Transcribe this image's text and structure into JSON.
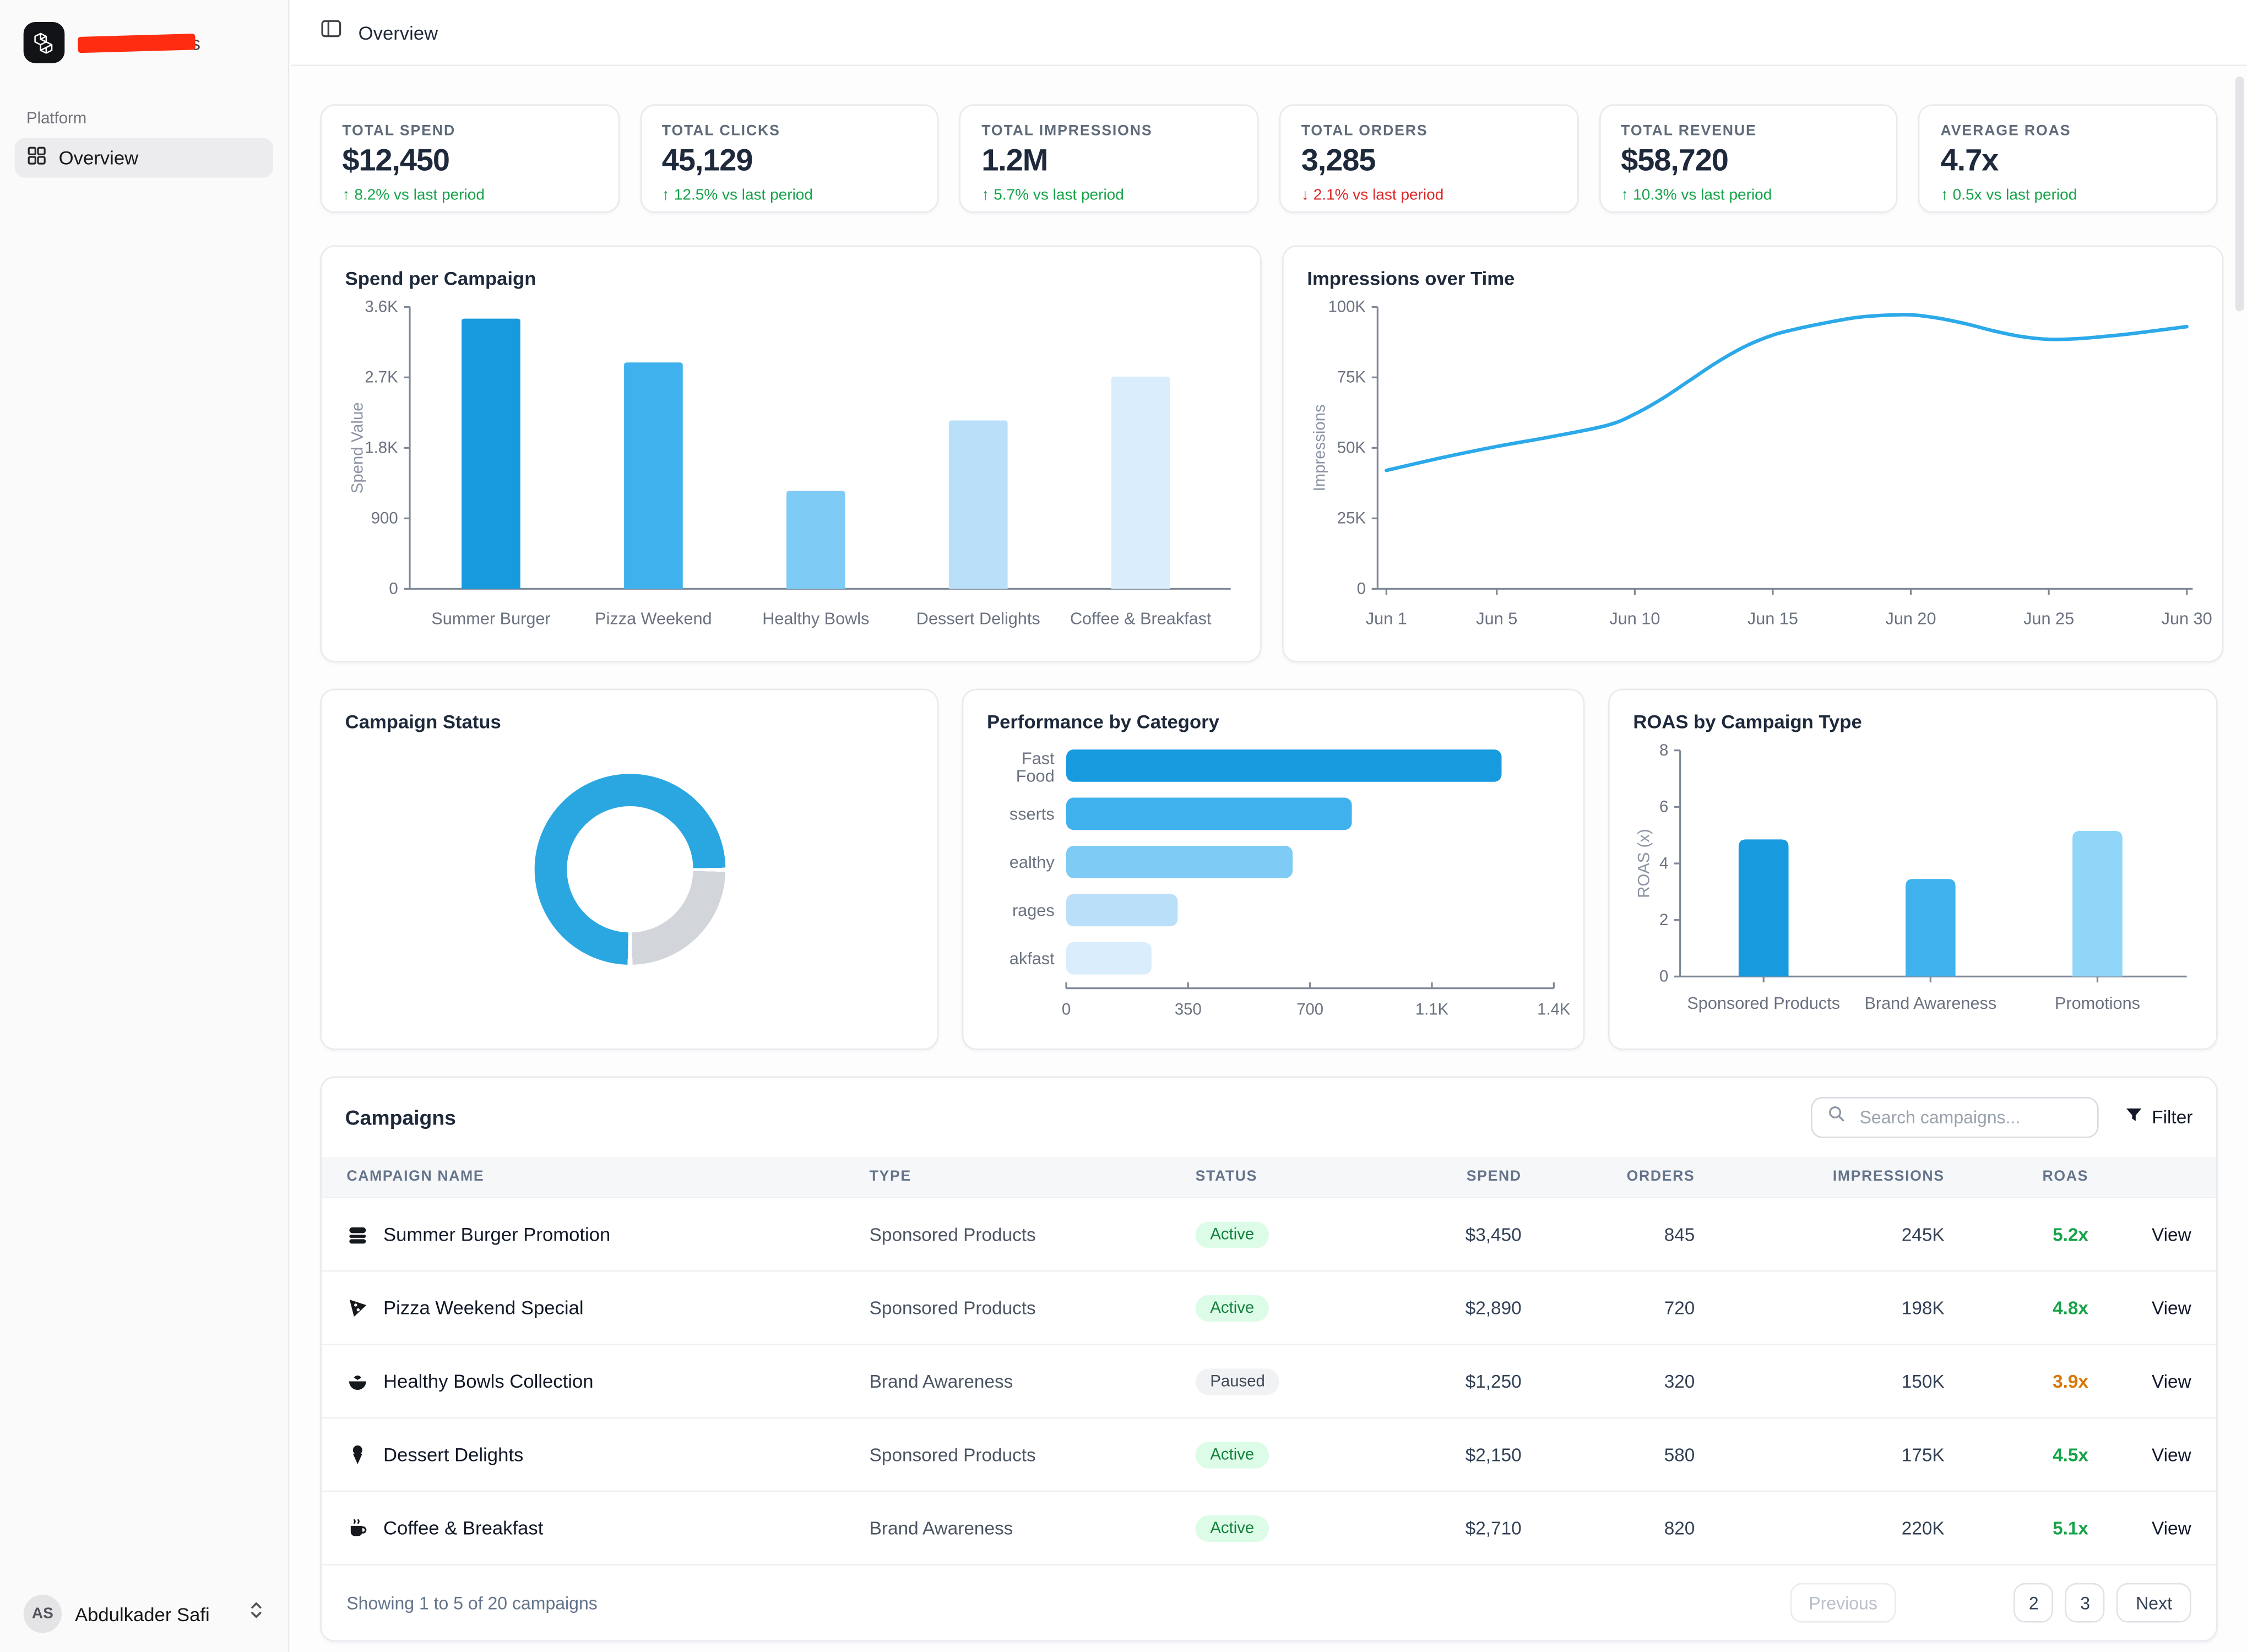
{
  "sidebar": {
    "brand_tail": "s",
    "platform_label": "Platform",
    "nav_overview": "Overview",
    "user_initials": "AS",
    "user_name": "Abdulkader Safi"
  },
  "topbar": {
    "title": "Overview"
  },
  "kpis": [
    {
      "label": "TOTAL SPEND",
      "value": "$12,450",
      "delta": "8.2% vs last period",
      "direction": "up"
    },
    {
      "label": "TOTAL CLICKS",
      "value": "45,129",
      "delta": "12.5% vs last period",
      "direction": "up"
    },
    {
      "label": "TOTAL IMPRESSIONS",
      "value": "1.2M",
      "delta": "5.7% vs last period",
      "direction": "up"
    },
    {
      "label": "TOTAL ORDERS",
      "value": "3,285",
      "delta": "2.1% vs last period",
      "direction": "down"
    },
    {
      "label": "TOTAL REVENUE",
      "value": "$58,720",
      "delta": "10.3% vs last period",
      "direction": "up"
    },
    {
      "label": "AVERAGE ROAS",
      "value": "4.7x",
      "delta": "0.5x vs last period",
      "direction": "up"
    }
  ],
  "chart_data": [
    {
      "id": "spend_per_campaign",
      "type": "bar",
      "title": "Spend per Campaign",
      "ylabel": "Spend Value",
      "categories": [
        "Summer Burger",
        "Pizza Weekend",
        "Healthy Bowls",
        "Dessert Delights",
        "Coffee & Breakfast"
      ],
      "values": [
        3450,
        2890,
        1250,
        2150,
        2710
      ],
      "ylim": [
        0,
        3600
      ],
      "yticks": [
        {
          "v": 0,
          "label": "0"
        },
        {
          "v": 900,
          "label": "900"
        },
        {
          "v": 1800,
          "label": "1.8K"
        },
        {
          "v": 2700,
          "label": "2.7K"
        },
        {
          "v": 3600,
          "label": "3.6K"
        }
      ],
      "colors": [
        "#189BDE",
        "#3FB2EE",
        "#7ECBF5",
        "#BADFF8",
        "#D9EDFC"
      ]
    },
    {
      "id": "impressions_over_time",
      "type": "line",
      "title": "Impressions over Time",
      "ylabel": "Impressions",
      "x": [
        1,
        3,
        5,
        7,
        9,
        10,
        11,
        12,
        13,
        14,
        15,
        16,
        17,
        18,
        19,
        20,
        21,
        22,
        23,
        24,
        25,
        26,
        27,
        28,
        30
      ],
      "y": [
        42000,
        46500,
        50500,
        54000,
        58000,
        62000,
        67500,
        74000,
        80500,
        86000,
        90000,
        92500,
        94500,
        96200,
        97000,
        97200,
        96000,
        94000,
        91500,
        89500,
        88500,
        88700,
        89500,
        90500,
        93000
      ],
      "ylim": [
        0,
        100000
      ],
      "yticks": [
        {
          "v": 0,
          "label": "0"
        },
        {
          "v": 25000,
          "label": "25K"
        },
        {
          "v": 50000,
          "label": "50K"
        },
        {
          "v": 75000,
          "label": "75K"
        },
        {
          "v": 100000,
          "label": "100K"
        }
      ],
      "xticks": [
        {
          "v": 1,
          "label": "Jun 1"
        },
        {
          "v": 5,
          "label": "Jun 5"
        },
        {
          "v": 10,
          "label": "Jun 10"
        },
        {
          "v": 15,
          "label": "Jun 15"
        },
        {
          "v": 20,
          "label": "Jun 20"
        },
        {
          "v": 25,
          "label": "Jun 25"
        },
        {
          "v": 30,
          "label": "Jun 30"
        }
      ],
      "color": "#2BA9E9",
      "grid": false,
      "legend": "none"
    },
    {
      "id": "campaign_status",
      "type": "pie",
      "title": "Campaign Status",
      "slices": [
        {
          "pct": 75,
          "color": "#2AA7E1"
        },
        {
          "pct": 25,
          "color": "#D2D6DB"
        }
      ]
    },
    {
      "id": "performance_by_category",
      "type": "bar",
      "title": "Performance by Category",
      "categories": [
        "Fast Food",
        "sserts",
        "ealthy",
        "rages",
        "akfast"
      ],
      "values": [
        1250,
        820,
        650,
        320,
        245
      ],
      "xlim": [
        0,
        1400
      ],
      "xticks": [
        {
          "v": 0,
          "label": "0"
        },
        {
          "v": 350,
          "label": "350"
        },
        {
          "v": 700,
          "label": "700"
        },
        {
          "v": 1050,
          "label": "1.1K"
        },
        {
          "v": 1400,
          "label": "1.4K"
        }
      ],
      "colors": [
        "#189BDE",
        "#3FB2EE",
        "#7ECBF5",
        "#BADFF8",
        "#D9EDFC"
      ],
      "orientation": "horizontal"
    },
    {
      "id": "roas_by_type",
      "type": "bar",
      "title": "ROAS by Campaign Type",
      "ylabel": "ROAS (x)",
      "categories": [
        "Sponsored Products",
        "Brand Awareness",
        "Promotions"
      ],
      "values": [
        4.85,
        3.45,
        5.15
      ],
      "ylim": [
        0,
        8
      ],
      "yticks": [
        {
          "v": 0,
          "label": "0"
        },
        {
          "v": 2,
          "label": "2"
        },
        {
          "v": 4,
          "label": "4"
        },
        {
          "v": 6,
          "label": "6"
        },
        {
          "v": 8,
          "label": "8"
        }
      ],
      "colors": [
        "#189BDE",
        "#3FB2EE",
        "#8FD6F8"
      ]
    }
  ],
  "table": {
    "title": "Campaigns",
    "search_placeholder": "Search campaigns...",
    "filter_label": "Filter",
    "columns": [
      "CAMPAIGN NAME",
      "TYPE",
      "STATUS",
      "SPEND",
      "ORDERS",
      "IMPRESSIONS",
      "ROAS"
    ],
    "rows": [
      {
        "icon": "burger",
        "name": "Summer Burger Promotion",
        "type": "Sponsored Products",
        "status": "Active",
        "spend": "$3,450",
        "orders": "845",
        "impressions": "245K",
        "roas": "5.2x",
        "roas_tone": "good",
        "action": "View"
      },
      {
        "icon": "pizza",
        "name": "Pizza Weekend Special",
        "type": "Sponsored Products",
        "status": "Active",
        "spend": "$2,890",
        "orders": "720",
        "impressions": "198K",
        "roas": "4.8x",
        "roas_tone": "good",
        "action": "View"
      },
      {
        "icon": "bowl",
        "name": "Healthy Bowls Collection",
        "type": "Brand Awareness",
        "status": "Paused",
        "spend": "$1,250",
        "orders": "320",
        "impressions": "150K",
        "roas": "3.9x",
        "roas_tone": "warn",
        "action": "View"
      },
      {
        "icon": "icecream",
        "name": "Dessert Delights",
        "type": "Sponsored Products",
        "status": "Active",
        "spend": "$2,150",
        "orders": "580",
        "impressions": "175K",
        "roas": "4.5x",
        "roas_tone": "good",
        "action": "View"
      },
      {
        "icon": "coffee",
        "name": "Coffee & Breakfast",
        "type": "Brand Awareness",
        "status": "Active",
        "spend": "$2,710",
        "orders": "820",
        "impressions": "220K",
        "roas": "5.1x",
        "roas_tone": "good",
        "action": "View"
      }
    ],
    "footer": {
      "showing": "Showing 1 to 5 of 20 campaigns",
      "previous": "Previous",
      "pages": [
        "2",
        "3"
      ],
      "next": "Next"
    }
  }
}
